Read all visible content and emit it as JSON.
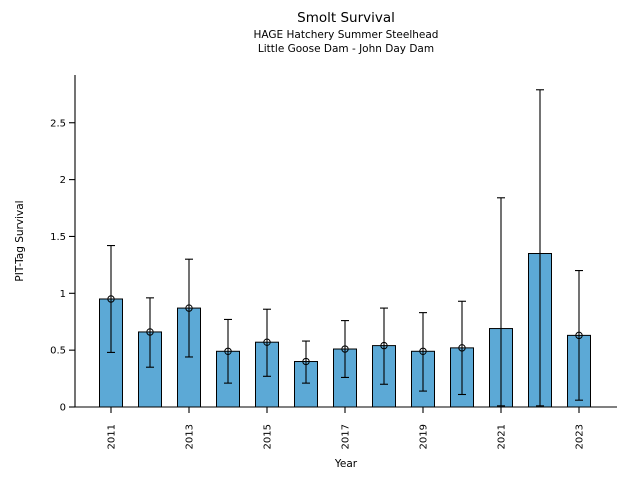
{
  "chart_data": {
    "type": "bar",
    "title": "Smolt Survival",
    "subtitle_line1": "HAGE Hatchery Summer Steelhead",
    "subtitle_line2": "Little Goose Dam - John Day Dam",
    "xlabel": "Year",
    "ylabel": "PIT-Tag Survival",
    "categories": [
      "2011",
      "2012",
      "2013",
      "2014",
      "2015",
      "2016",
      "2017",
      "2018",
      "2019",
      "2020",
      "2021",
      "2022",
      "2023"
    ],
    "values": [
      0.95,
      0.66,
      0.87,
      0.49,
      0.57,
      0.4,
      0.51,
      0.54,
      0.49,
      0.52,
      0.69,
      1.35,
      0.63
    ],
    "err_low": [
      0.48,
      0.35,
      0.44,
      0.21,
      0.27,
      0.21,
      0.26,
      0.2,
      0.14,
      0.11,
      0.01,
      0.01,
      0.06
    ],
    "err_high": [
      1.42,
      0.96,
      1.3,
      0.77,
      0.86,
      0.58,
      0.76,
      0.87,
      0.83,
      0.93,
      1.84,
      2.79,
      1.2
    ],
    "point_marker": [
      true,
      true,
      true,
      true,
      true,
      true,
      true,
      true,
      true,
      true,
      false,
      false,
      true
    ],
    "x_tick_labels": [
      "2011",
      "2013",
      "2015",
      "2017",
      "2019",
      "2021",
      "2023"
    ],
    "y_tick_labels": [
      "0",
      "0.5",
      "1",
      "1.5",
      "2",
      "2.5"
    ],
    "y_tick_values": [
      0,
      0.5,
      1,
      1.5,
      2,
      2.5
    ],
    "ylim": [
      0,
      2.92
    ],
    "bar_color": "#5ca9d6",
    "edge_color": "#000000",
    "error_bar_color": "#000000",
    "grid": false,
    "legend": "none"
  }
}
